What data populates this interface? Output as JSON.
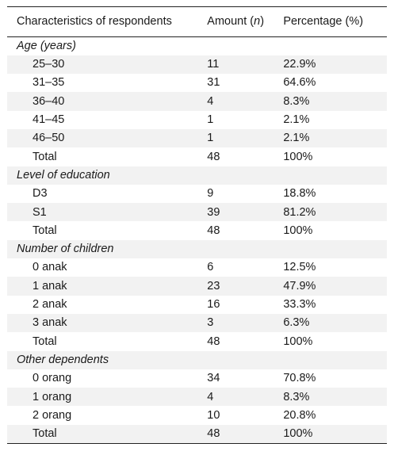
{
  "table": {
    "headers": {
      "characteristics": "Characteristics of respondents",
      "amount_prefix": "Amount (",
      "amount_var": "n",
      "amount_suffix": ")",
      "percentage": "Percentage (%)"
    },
    "groups": [
      {
        "title": "Age (years)",
        "rows": [
          {
            "label": "25–30",
            "amount": "11",
            "percentage": "22.9%"
          },
          {
            "label": "31–35",
            "amount": "31",
            "percentage": "64.6%"
          },
          {
            "label": "36–40",
            "amount": "4",
            "percentage": "8.3%"
          },
          {
            "label": "41–45",
            "amount": "1",
            "percentage": "2.1%"
          },
          {
            "label": "46–50",
            "amount": "1",
            "percentage": "2.1%"
          },
          {
            "label": "Total",
            "amount": "48",
            "percentage": "100%"
          }
        ]
      },
      {
        "title": "Level of education",
        "rows": [
          {
            "label": "D3",
            "amount": "9",
            "percentage": "18.8%"
          },
          {
            "label": "S1",
            "amount": "39",
            "percentage": "81.2%"
          },
          {
            "label": "Total",
            "amount": "48",
            "percentage": "100%"
          }
        ]
      },
      {
        "title": "Number of children",
        "rows": [
          {
            "label": "0 anak",
            "amount": "6",
            "percentage": "12.5%"
          },
          {
            "label": "1 anak",
            "amount": "23",
            "percentage": "47.9%"
          },
          {
            "label": "2 anak",
            "amount": "16",
            "percentage": "33.3%"
          },
          {
            "label": "3 anak",
            "amount": "3",
            "percentage": "6.3%"
          },
          {
            "label": "Total",
            "amount": "48",
            "percentage": "100%"
          }
        ]
      },
      {
        "title": "Other dependents",
        "rows": [
          {
            "label": "0 orang",
            "amount": "34",
            "percentage": "70.8%"
          },
          {
            "label": "1 orang",
            "amount": "4",
            "percentage": "8.3%"
          },
          {
            "label": "2 orang",
            "amount": "10",
            "percentage": "20.8%"
          },
          {
            "label": "Total",
            "amount": "48",
            "percentage": "100%"
          }
        ]
      }
    ]
  }
}
